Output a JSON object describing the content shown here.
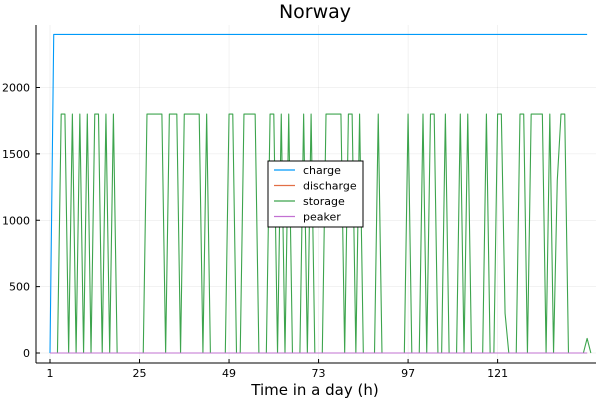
{
  "chart_data": {
    "type": "line",
    "title": "Norway",
    "xlabel": "Time in a day (h)",
    "ylabel": "",
    "xlim": [
      1,
      146
    ],
    "ylim": [
      -50,
      2480
    ],
    "xticks": [
      1,
      25,
      49,
      73,
      97,
      121
    ],
    "yticks": [
      0,
      500,
      1000,
      1500,
      2000
    ],
    "grid": true,
    "legend_position": "center-right",
    "series": [
      {
        "name": "charge",
        "color": "#009AF9",
        "points": [
          [
            1,
            0
          ],
          [
            2,
            2400
          ],
          [
            145,
            2400
          ]
        ]
      },
      {
        "name": "discharge",
        "color": "#E26F46",
        "points": [
          [
            1,
            0
          ],
          [
            145,
            0
          ]
        ]
      },
      {
        "name": "storage",
        "color": "#3DA44D",
        "points": [
          [
            1,
            0
          ],
          [
            3,
            0
          ],
          [
            4,
            1800
          ],
          [
            5,
            1800
          ],
          [
            6,
            0
          ],
          [
            7,
            1800
          ],
          [
            8,
            0
          ],
          [
            9,
            1800
          ],
          [
            10,
            0
          ],
          [
            11,
            1800
          ],
          [
            12,
            0
          ],
          [
            13,
            1800
          ],
          [
            14,
            1800
          ],
          [
            15,
            0
          ],
          [
            16,
            1800
          ],
          [
            17,
            0
          ],
          [
            18,
            1800
          ],
          [
            19,
            0
          ],
          [
            26,
            0
          ],
          [
            27,
            1800
          ],
          [
            31,
            1800
          ],
          [
            32,
            0
          ],
          [
            33,
            1800
          ],
          [
            35,
            1800
          ],
          [
            36,
            0
          ],
          [
            37,
            1800
          ],
          [
            41,
            1800
          ],
          [
            42,
            0
          ],
          [
            43,
            1800
          ],
          [
            44,
            0
          ],
          [
            48,
            0
          ],
          [
            49,
            1800
          ],
          [
            50,
            1800
          ],
          [
            51,
            0
          ],
          [
            52,
            0
          ],
          [
            53,
            1800
          ],
          [
            56,
            1800
          ],
          [
            57,
            0
          ],
          [
            59,
            0
          ],
          [
            60,
            1800
          ],
          [
            61,
            1800
          ],
          [
            62,
            0
          ],
          [
            63,
            1800
          ],
          [
            64,
            0
          ],
          [
            65,
            1800
          ],
          [
            66,
            0
          ],
          [
            68,
            0
          ],
          [
            69,
            1800
          ],
          [
            70,
            0
          ],
          [
            71,
            1800
          ],
          [
            72,
            0
          ],
          [
            74,
            0
          ],
          [
            75,
            1800
          ],
          [
            79,
            1800
          ],
          [
            80,
            0
          ],
          [
            81,
            1800
          ],
          [
            82,
            1800
          ],
          [
            83,
            0
          ],
          [
            84,
            1800
          ],
          [
            85,
            0
          ],
          [
            88,
            0
          ],
          [
            89,
            1800
          ],
          [
            90,
            0
          ],
          [
            96,
            0
          ],
          [
            97,
            1800
          ],
          [
            98,
            0
          ],
          [
            100,
            0
          ],
          [
            101,
            1800
          ],
          [
            102,
            0
          ],
          [
            103,
            1800
          ],
          [
            104,
            1800
          ],
          [
            105,
            0
          ],
          [
            106,
            0
          ],
          [
            107,
            1800
          ],
          [
            108,
            0
          ],
          [
            110,
            0
          ],
          [
            111,
            1800
          ],
          [
            112,
            0
          ],
          [
            113,
            1800
          ],
          [
            114,
            0
          ],
          [
            117,
            0
          ],
          [
            118,
            1800
          ],
          [
            119,
            0
          ],
          [
            120,
            0
          ],
          [
            121,
            1800
          ],
          [
            122,
            1800
          ],
          [
            123,
            300
          ],
          [
            124,
            0
          ],
          [
            126,
            0
          ],
          [
            127,
            1800
          ],
          [
            128,
            1800
          ],
          [
            129,
            0
          ],
          [
            130,
            1800
          ],
          [
            133,
            1800
          ],
          [
            134,
            0
          ],
          [
            135,
            1800
          ],
          [
            136,
            0
          ],
          [
            137,
            1300
          ],
          [
            138,
            1800
          ],
          [
            139,
            1800
          ],
          [
            140,
            0
          ],
          [
            144,
            0
          ],
          [
            145,
            110
          ],
          [
            146,
            0
          ]
        ]
      },
      {
        "name": "peaker",
        "color": "#C271D2",
        "points": [
          [
            1,
            0
          ],
          [
            145,
            0
          ]
        ]
      }
    ]
  }
}
